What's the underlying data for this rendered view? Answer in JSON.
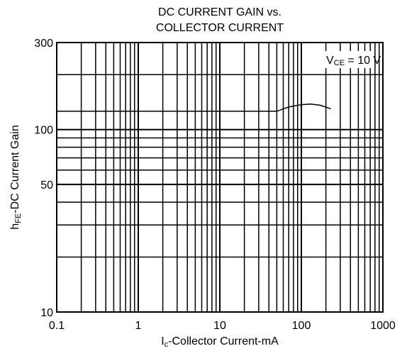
{
  "chart_data": {
    "type": "line",
    "title": [
      "DC CURRENT GAIN vs.",
      "COLLECTOR CURRENT"
    ],
    "x_label": {
      "main": "I",
      "sub": "c",
      "rest": "-Collector Current-mA"
    },
    "y_label": {
      "main": "h",
      "sub": "FE",
      "rest": "-DC Current Gain"
    },
    "annotation": {
      "main": "V",
      "sub": "CE",
      "rest": " = 10 V"
    },
    "xlog": true,
    "ylog": true,
    "grid": true,
    "xlim": [
      0.1,
      1000
    ],
    "ylim": [
      10,
      300
    ],
    "xticks": [
      0.1,
      1,
      10,
      100,
      1000
    ],
    "yticks": [
      10,
      50,
      100,
      300
    ],
    "series": [
      {
        "color": "#000000",
        "x": [
          0.1,
          1,
          10,
          50,
          70,
          100,
          130,
          170,
          230
        ],
        "values": [
          126,
          126,
          126,
          126,
          133,
          137,
          138,
          136,
          130
        ]
      }
    ]
  }
}
